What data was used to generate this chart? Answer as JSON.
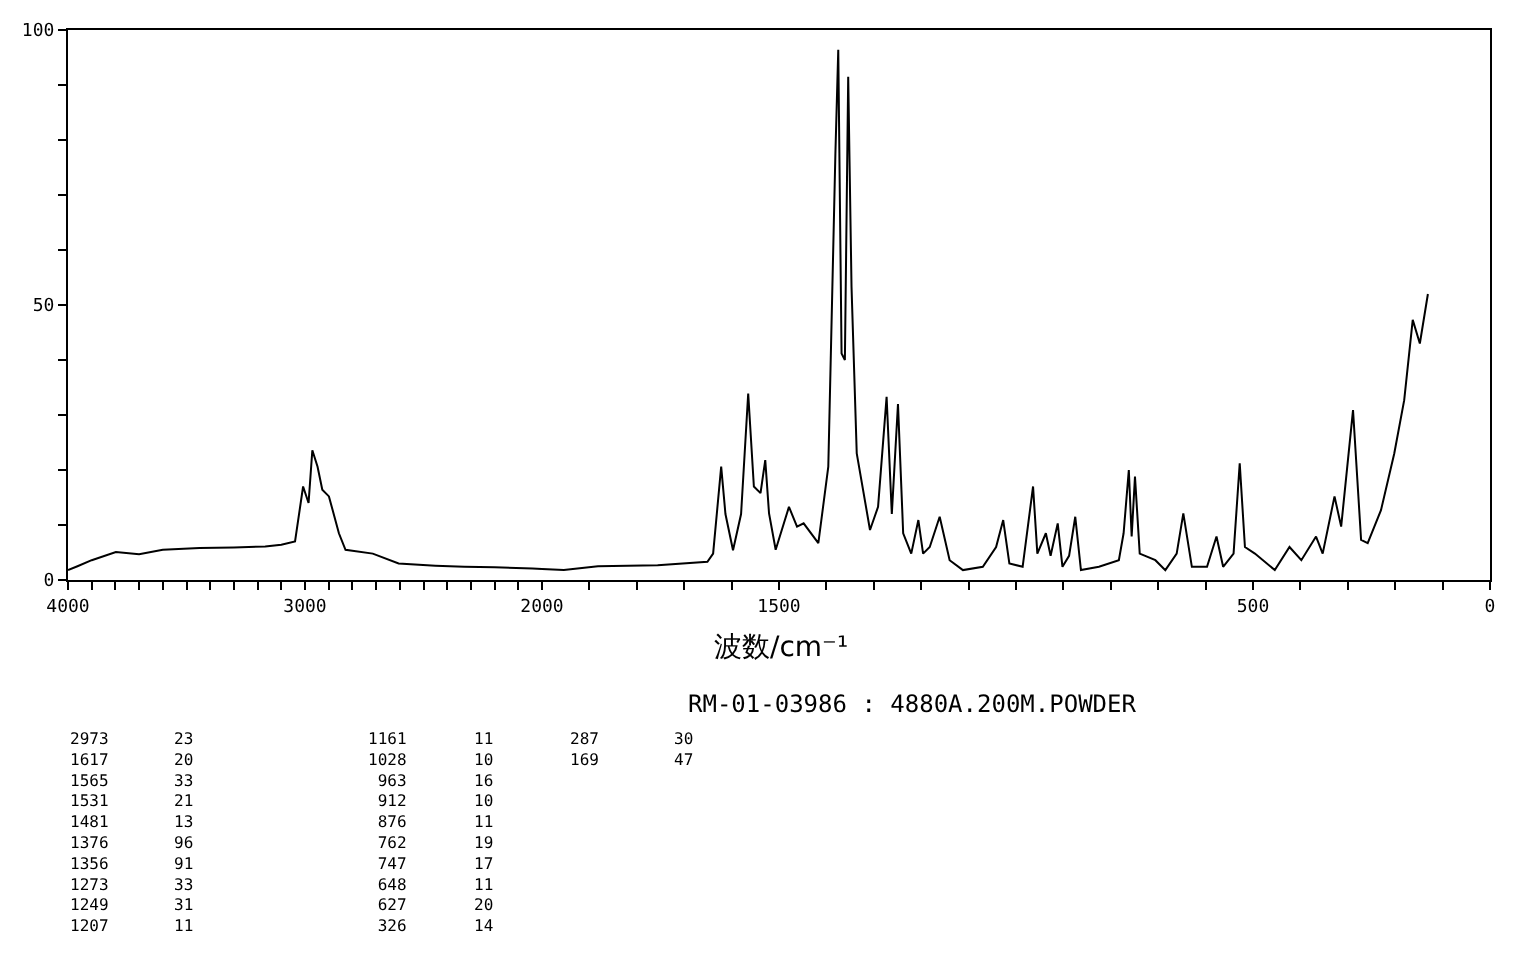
{
  "chart_data": [
    {
      "type": "line",
      "xlim": [
        4000,
        2000
      ],
      "ylim": [
        0,
        100
      ],
      "xticks": [
        4000,
        {
          "value": 3900,
          "label": null
        },
        {
          "value": 3800,
          "label": null
        },
        {
          "value": 3700,
          "label": null
        },
        {
          "value": 3600,
          "label": null
        },
        {
          "value": 3500,
          "label": null
        },
        {
          "value": 3400,
          "label": null
        },
        {
          "value": 3300,
          "label": null
        },
        {
          "value": 3200,
          "label": null
        },
        {
          "value": 3100,
          "label": null
        },
        3000,
        {
          "value": 2900,
          "label": null
        },
        {
          "value": 2800,
          "label": null
        },
        {
          "value": 2700,
          "label": null
        },
        {
          "value": 2600,
          "label": null
        },
        {
          "value": 2500,
          "label": null
        },
        {
          "value": 2400,
          "label": null
        },
        {
          "value": 2300,
          "label": null
        },
        {
          "value": 2200,
          "label": null
        },
        {
          "value": 2100,
          "label": null
        }
      ],
      "yticks": [
        0,
        {
          "value": 10,
          "label": null
        },
        {
          "value": 20,
          "label": null
        },
        {
          "value": 30,
          "label": null
        },
        {
          "value": 40,
          "label": null
        },
        50,
        {
          "value": 60,
          "label": null
        },
        {
          "value": 70,
          "label": null
        },
        {
          "value": 80,
          "label": null
        },
        {
          "value": 90,
          "label": null
        },
        100
      ],
      "marker": "none",
      "line_style": "solid",
      "annotations": [
        "RM-01-03986 : 4880A.200M.POWDER",
        "2973\n1617\n1565\n1531\n1481\n1376\n1356\n1273\n1249\n1207",
        "23\n20\n33\n21\n13\n96\n91\n33\n31\n11",
        "1161\n1028\n963\n912\n876\n762\n747\n648\n627\n326",
        "11\n10\n16\n10\n11\n19\n17\n11\n20\n14",
        "287\n169",
        "30\n47"
      ],
      "series": [
        {
          "color": "#000000",
          "x": [
            4000,
            3960,
            3900,
            3798,
            3700,
            3600,
            3445,
            3300,
            3168,
            3100,
            3042,
            3008,
            2985,
            2969,
            2947,
            2927,
            2899,
            2857,
            2829,
            2714,
            2605,
            2450,
            2328,
            2200,
            2040,
            2000
          ],
          "values": [
            1.8,
            2.5,
            3.6,
            5.1,
            4.7,
            5.5,
            5.8,
            5.9,
            6.1,
            6.4,
            7.0,
            17.0,
            14.0,
            23.6,
            20.6,
            16.4,
            15.2,
            8.5,
            5.5,
            4.8,
            3.0,
            2.6,
            2.4,
            2.3,
            2.1,
            2.0
          ]
        }
      ]
    },
    {
      "type": "line",
      "xlabel": "波数/cm⁻¹",
      "xlim": [
        2000,
        0
      ],
      "ylim": [
        0,
        100
      ],
      "tick_labels": "x",
      "xticks": [
        2000,
        {
          "value": 1900,
          "label": null
        },
        {
          "value": 1800,
          "label": null
        },
        {
          "value": 1700,
          "label": null
        },
        {
          "value": 1600,
          "label": null
        },
        1500,
        {
          "value": 1400,
          "label": null
        },
        {
          "value": 1300,
          "label": null
        },
        {
          "value": 1200,
          "label": null
        },
        {
          "value": 1100,
          "label": null
        },
        {
          "value": 1000,
          "label": null
        },
        {
          "value": 900,
          "label": null
        },
        {
          "value": 800,
          "label": null
        },
        {
          "value": 700,
          "label": null
        },
        {
          "value": 600,
          "label": null
        },
        500,
        {
          "value": 400,
          "label": null
        },
        {
          "value": 300,
          "label": null
        },
        {
          "value": 200,
          "label": null
        },
        {
          "value": 100,
          "label": null
        },
        0
      ],
      "marker": "none",
      "line_style": "solid",
      "series": [
        {
          "color": "#000000",
          "x": [
            2000,
            1954,
            1882,
            1756,
            1651,
            1639,
            1622,
            1613,
            1597,
            1580,
            1565,
            1553,
            1539,
            1529,
            1521,
            1507,
            1479,
            1462,
            1448,
            1417,
            1396,
            1381,
            1375,
            1368,
            1361,
            1354,
            1347,
            1336,
            1308,
            1291,
            1273,
            1262,
            1249,
            1238,
            1221,
            1206,
            1196,
            1182,
            1161,
            1140,
            1112,
            1070,
            1042,
            1027,
            1014,
            986,
            964,
            955,
            937,
            927,
            912,
            902,
            888,
            875,
            863,
            825,
            783,
            773,
            762,
            756,
            749,
            739,
            706,
            685,
            661,
            647,
            629,
            597,
            577,
            563,
            541,
            528,
            517,
            496,
            454,
            423,
            398,
            367,
            353,
            328,
            314,
            289,
            272,
            258,
            230,
            202,
            181,
            163,
            148,
            131
          ],
          "values": [
            2.0,
            1.8,
            2.5,
            2.7,
            3.3,
            4.8,
            20.6,
            12.0,
            5.4,
            12.0,
            33.9,
            17.0,
            15.8,
            21.8,
            12.1,
            5.5,
            13.3,
            9.7,
            10.3,
            6.7,
            20.6,
            77.6,
            96.4,
            41.2,
            40.0,
            91.5,
            53.3,
            23.0,
            9.1,
            13.3,
            33.3,
            12.0,
            32.0,
            8.5,
            4.8,
            10.9,
            4.8,
            6.0,
            11.5,
            3.6,
            1.8,
            2.4,
            6.0,
            10.9,
            3.0,
            2.4,
            17.0,
            4.8,
            8.5,
            4.4,
            10.3,
            2.4,
            4.4,
            11.5,
            1.8,
            2.4,
            3.6,
            8.5,
            20.0,
            7.9,
            18.8,
            4.8,
            3.6,
            1.8,
            4.8,
            12.1,
            2.4,
            2.4,
            7.9,
            2.4,
            4.8,
            21.2,
            6.0,
            4.8,
            1.8,
            6.0,
            3.6,
            7.9,
            4.8,
            15.2,
            9.7,
            30.9,
            7.3,
            6.7,
            12.7,
            23.0,
            32.7,
            47.3,
            43.0,
            52.0
          ]
        }
      ]
    }
  ]
}
